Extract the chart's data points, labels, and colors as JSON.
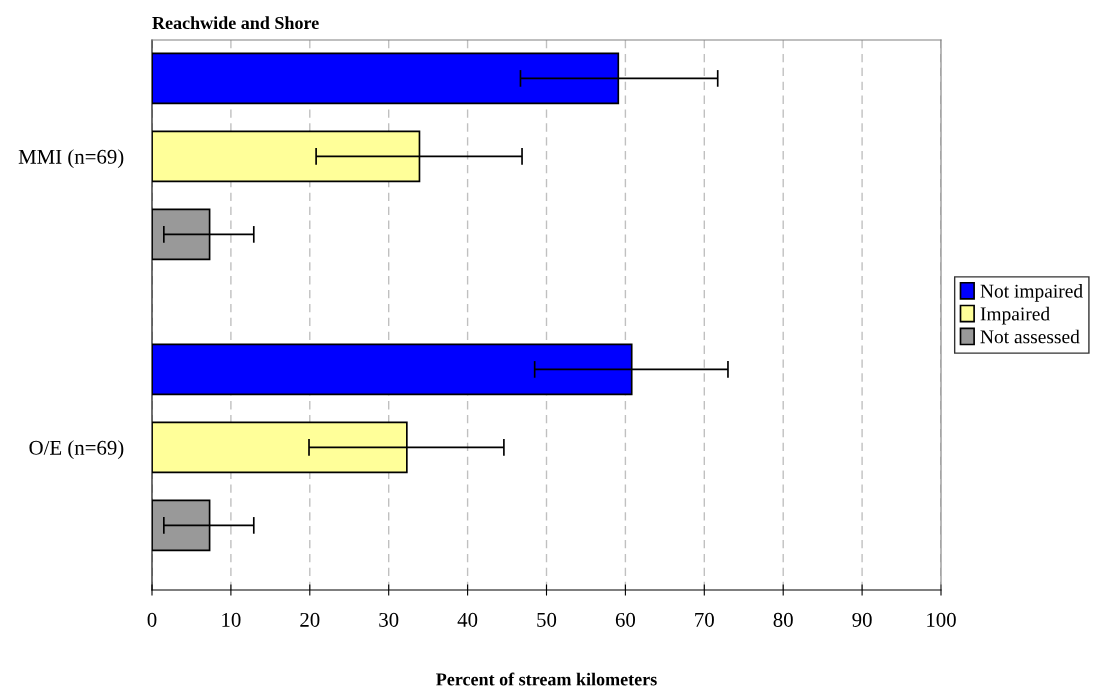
{
  "chart_data": {
    "type": "bar",
    "orientation": "horizontal",
    "title": "Reachwide and Shore",
    "xlabel": "Percent of stream kilometers",
    "categories": [
      "MMI (n=69)",
      "O/E (n=69)"
    ],
    "series": [
      {
        "name": "Not impaired",
        "color": "#0000ff",
        "values": [
          59.1,
          60.8
        ],
        "errors": [
          [
            46.7,
            71.7
          ],
          [
            48.5,
            73.0
          ]
        ]
      },
      {
        "name": "Impaired",
        "color": "#ffff99",
        "values": [
          33.9,
          32.3
        ],
        "errors": [
          [
            20.8,
            46.9
          ],
          [
            19.9,
            44.6
          ]
        ]
      },
      {
        "name": "Not assessed",
        "color": "#999999",
        "values": [
          7.3,
          7.3
        ],
        "errors": [
          [
            1.5,
            12.9
          ],
          [
            1.5,
            12.9
          ]
        ]
      }
    ],
    "xlim": [
      0,
      100
    ],
    "xticks": [
      0,
      10,
      20,
      30,
      40,
      50,
      60,
      70,
      80,
      90,
      100
    ],
    "grid": "x",
    "legend": "right"
  }
}
